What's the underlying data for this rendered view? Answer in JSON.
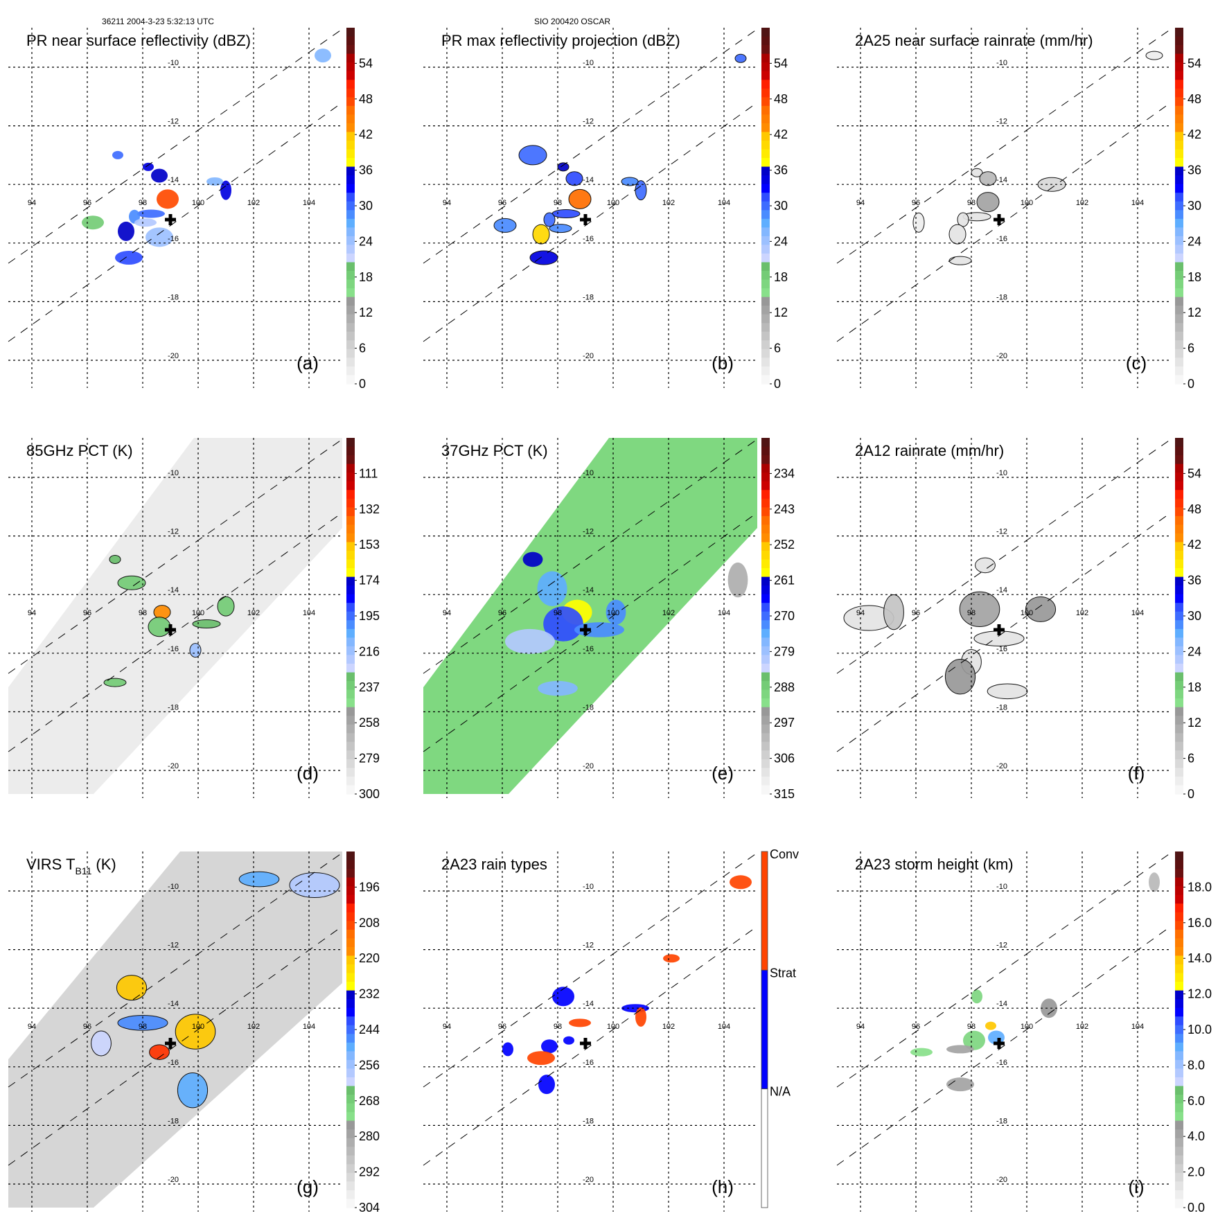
{
  "header": {
    "orbit_time": "36211 2004-3-23 5:32:13 UTC",
    "storm": "SIO 200420 OSCAR"
  },
  "colors": {
    "ramp": [
      "#f7f7f7",
      "#eeeeee",
      "#e4e4e4",
      "#d9d9d9",
      "#cfcfcf",
      "#c4c4c4",
      "#b9b9b9",
      "#aeaeae",
      "#a3a3a3",
      "#989898",
      "#88e08a",
      "#7ed680",
      "#74cc76",
      "#6abf6c",
      "#ccd5ff",
      "#b3c9ff",
      "#9cc0ff",
      "#83b7ff",
      "#5eaeff",
      "#4a8cff",
      "#3e6cff",
      "#2f4dff",
      "#0000ff",
      "#0000e0",
      "#0000c8",
      "#ffff00",
      "#ffeb00",
      "#ffd900",
      "#ffc800",
      "#ff8c00",
      "#ff7e00",
      "#ff6e00",
      "#ff4a00",
      "#ff3300",
      "#ff2000",
      "#cc0000",
      "#bb0000",
      "#aa0000",
      "#6a1010",
      "#5c1010",
      "#501414"
    ],
    "raintype_conv": "#ff4400",
    "raintype_strat": "#0000ff",
    "raintype_na": "#ffffff"
  },
  "chart_data": [
    {
      "id": "a",
      "type": "heatmap",
      "title": "PR near surface reflectivity (dBZ)",
      "panel_label": "(a)",
      "colorbar_ticks": [
        "54",
        "48",
        "42",
        "36",
        "30",
        "24",
        "18",
        "12",
        "6",
        "0"
      ],
      "colorbar_range": [
        0,
        60
      ],
      "colorbar_unit": "dBZ",
      "lon_ticks": [
        "94",
        "96",
        "98",
        "100",
        "102",
        "104"
      ],
      "lat_ticks": [
        "-10",
        "-12",
        "-14",
        "-16",
        "-18",
        "-20"
      ],
      "swath": "PR narrow swath",
      "storm_center": {
        "lon": 99.0,
        "lat": -15.2
      },
      "features": [
        {
          "lon": 98.2,
          "lat": -13.4,
          "value": 34
        },
        {
          "lon": 98.6,
          "lat": -13.7,
          "value": 36
        },
        {
          "lon": 98.9,
          "lat": -14.5,
          "value": 48
        },
        {
          "lon": 98.3,
          "lat": -15.0,
          "value": 30
        },
        {
          "lon": 97.7,
          "lat": -15.1,
          "value": 28
        },
        {
          "lon": 97.4,
          "lat": -15.6,
          "value": 36
        },
        {
          "lon": 98.1,
          "lat": -15.3,
          "value": 22
        },
        {
          "lon": 97.5,
          "lat": -16.5,
          "value": 32
        },
        {
          "lon": 101.0,
          "lat": -14.2,
          "value": 34
        },
        {
          "lon": 100.6,
          "lat": -13.9,
          "value": 26
        },
        {
          "lon": 96.2,
          "lat": -15.3,
          "value": 18
        },
        {
          "lon": 98.6,
          "lat": -15.8,
          "value": 24
        },
        {
          "lon": 97.1,
          "lat": -13.0,
          "value": 30
        },
        {
          "lon": 104.5,
          "lat": -9.6,
          "value": 26
        }
      ]
    },
    {
      "id": "b",
      "type": "heatmap",
      "title": "PR max reflectivity projection (dBZ)",
      "panel_label": "(b)",
      "colorbar_ticks": [
        "54",
        "48",
        "42",
        "36",
        "30",
        "24",
        "18",
        "12",
        "6",
        "0"
      ],
      "colorbar_range": [
        0,
        60
      ],
      "colorbar_unit": "dBZ",
      "lon_ticks": [
        "94",
        "96",
        "98",
        "100",
        "102",
        "104"
      ],
      "lat_ticks": [
        "-10",
        "-12",
        "-14",
        "-16",
        "-18",
        "-20"
      ],
      "storm_center": {
        "lon": 99.0,
        "lat": -15.2
      },
      "features": [
        {
          "lon": 98.2,
          "lat": -13.4,
          "value": 36
        },
        {
          "lon": 98.6,
          "lat": -13.8,
          "value": 32
        },
        {
          "lon": 98.8,
          "lat": -14.5,
          "value": 46
        },
        {
          "lon": 98.3,
          "lat": -15.0,
          "value": 32
        },
        {
          "lon": 97.7,
          "lat": -15.2,
          "value": 30
        },
        {
          "lon": 97.4,
          "lat": -15.7,
          "value": 40
        },
        {
          "lon": 98.1,
          "lat": -15.5,
          "value": 28
        },
        {
          "lon": 97.5,
          "lat": -16.5,
          "value": 34
        },
        {
          "lon": 101.0,
          "lat": -14.2,
          "value": 30
        },
        {
          "lon": 100.6,
          "lat": -13.9,
          "value": 28
        },
        {
          "lon": 96.1,
          "lat": -15.4,
          "value": 28
        },
        {
          "lon": 97.1,
          "lat": -13.0,
          "value": 30
        },
        {
          "lon": 104.6,
          "lat": -9.7,
          "value": 30
        }
      ]
    },
    {
      "id": "c",
      "type": "heatmap",
      "title": "2A25 near surface rainrate (mm/hr)",
      "panel_label": "(c)",
      "colorbar_ticks": [
        "54",
        "48",
        "42",
        "36",
        "30",
        "24",
        "18",
        "12",
        "6",
        "0"
      ],
      "colorbar_range": [
        0,
        60
      ],
      "colorbar_unit": "mm/hr",
      "lon_ticks": [
        "94",
        "96",
        "98",
        "100",
        "102",
        "104"
      ],
      "lat_ticks": [
        "-10",
        "-12",
        "-14",
        "-16",
        "-18",
        "-20"
      ],
      "storm_center": {
        "lon": 99.0,
        "lat": -15.2
      },
      "features": [
        {
          "lon": 98.2,
          "lat": -13.6,
          "value": 4
        },
        {
          "lon": 98.6,
          "lat": -13.8,
          "value": 10
        },
        {
          "lon": 98.6,
          "lat": -14.6,
          "value": 12
        },
        {
          "lon": 98.2,
          "lat": -15.1,
          "value": 4
        },
        {
          "lon": 97.7,
          "lat": -15.2,
          "value": 3
        },
        {
          "lon": 97.5,
          "lat": -15.7,
          "value": 3
        },
        {
          "lon": 97.6,
          "lat": -16.6,
          "value": 3
        },
        {
          "lon": 100.9,
          "lat": -14.0,
          "value": 5
        },
        {
          "lon": 96.1,
          "lat": -15.3,
          "value": 2
        },
        {
          "lon": 104.6,
          "lat": -9.6,
          "value": 2
        }
      ]
    },
    {
      "id": "d",
      "type": "heatmap",
      "title": "85GHz PCT (K)",
      "panel_label": "(d)",
      "colorbar_ticks": [
        "111",
        "132",
        "153",
        "174",
        "195",
        "216",
        "237",
        "258",
        "279",
        "300"
      ],
      "colorbar_range": [
        300,
        90
      ],
      "colorbar_unit": "K",
      "lon_ticks": [
        "94",
        "96",
        "98",
        "100",
        "102",
        "104"
      ],
      "lat_ticks": [
        "-10",
        "-12",
        "-14",
        "-16",
        "-18",
        "-20"
      ],
      "storm_center": {
        "lon": 99.0,
        "lat": -15.2
      },
      "background": "gray 270-300 K",
      "features": [
        {
          "lon": 97.0,
          "lat": -12.8,
          "value": 230
        },
        {
          "lon": 98.7,
          "lat": -14.6,
          "value": 150
        },
        {
          "lon": 98.6,
          "lat": -15.1,
          "value": 235
        },
        {
          "lon": 100.3,
          "lat": -15.0,
          "value": 230
        },
        {
          "lon": 99.9,
          "lat": -15.9,
          "value": 215
        },
        {
          "lon": 101.0,
          "lat": -14.4,
          "value": 236
        },
        {
          "lon": 97.0,
          "lat": -17.0,
          "value": 236
        },
        {
          "lon": 97.6,
          "lat": -13.6,
          "value": 236
        }
      ]
    },
    {
      "id": "e",
      "type": "heatmap",
      "title": "37GHz PCT (K)",
      "panel_label": "(e)",
      "colorbar_ticks": [
        "234",
        "243",
        "252",
        "261",
        "270",
        "279",
        "288",
        "297",
        "306",
        "315"
      ],
      "colorbar_range": [
        315,
        225
      ],
      "colorbar_unit": "K",
      "lon_ticks": [
        "94",
        "96",
        "98",
        "100",
        "102",
        "104"
      ],
      "lat_ticks": [
        "-10",
        "-12",
        "-14",
        "-16",
        "-18",
        "-20"
      ],
      "storm_center": {
        "lon": 99.0,
        "lat": -15.2
      },
      "background": "green 284-292 K",
      "features": [
        {
          "lon": 97.1,
          "lat": -12.8,
          "value": 262
        },
        {
          "lon": 98.7,
          "lat": -14.6,
          "value": 258
        },
        {
          "lon": 98.2,
          "lat": -15.0,
          "value": 268
        },
        {
          "lon": 99.5,
          "lat": -15.2,
          "value": 272
        },
        {
          "lon": 100.1,
          "lat": -14.6,
          "value": 272
        },
        {
          "lon": 97.8,
          "lat": -13.8,
          "value": 274
        },
        {
          "lon": 98.0,
          "lat": -17.2,
          "value": 276
        },
        {
          "lon": 97.0,
          "lat": -15.6,
          "value": 280
        },
        {
          "lon": 104.5,
          "lat": -13.5,
          "value": 298
        }
      ]
    },
    {
      "id": "f",
      "type": "heatmap",
      "title": "2A12 rainrate (mm/hr)",
      "panel_label": "(f)",
      "colorbar_ticks": [
        "54",
        "48",
        "42",
        "36",
        "30",
        "24",
        "18",
        "12",
        "6",
        "0"
      ],
      "colorbar_range": [
        0,
        60
      ],
      "colorbar_unit": "mm/hr",
      "lon_ticks": [
        "94",
        "96",
        "98",
        "100",
        "102",
        "104"
      ],
      "lat_ticks": [
        "-10",
        "-12",
        "-14",
        "-16",
        "-18",
        "-20"
      ],
      "storm_center": {
        "lon": 99.0,
        "lat": -15.2
      },
      "features": [
        {
          "lon": 98.5,
          "lat": -13.0,
          "value": 4
        },
        {
          "lon": 100.5,
          "lat": -14.5,
          "value": 14
        },
        {
          "lon": 98.3,
          "lat": -14.5,
          "value": 12
        },
        {
          "lon": 99.0,
          "lat": -15.5,
          "value": 4
        },
        {
          "lon": 98.0,
          "lat": -16.3,
          "value": 4
        },
        {
          "lon": 97.6,
          "lat": -16.8,
          "value": 14
        },
        {
          "lon": 99.3,
          "lat": -17.3,
          "value": 4
        },
        {
          "lon": 94.3,
          "lat": -14.8,
          "value": 4
        },
        {
          "lon": 95.2,
          "lat": -14.6,
          "value": 8
        }
      ]
    },
    {
      "id": "g",
      "type": "heatmap",
      "title_main": "VIRS T",
      "title_sub": "B11",
      "title_unit": "(K)",
      "panel_label": "(g)",
      "colorbar_ticks": [
        "196",
        "208",
        "220",
        "232",
        "244",
        "256",
        "268",
        "280",
        "292",
        "304"
      ],
      "colorbar_range": [
        304,
        184
      ],
      "colorbar_unit": "K",
      "lon_ticks": [
        "94",
        "96",
        "98",
        "100",
        "102",
        "104"
      ],
      "lat_ticks": [
        "-10",
        "-12",
        "-14",
        "-16",
        "-18",
        "-20"
      ],
      "storm_center": {
        "lon": 99.0,
        "lat": -15.2
      },
      "features": [
        {
          "lon": 98.6,
          "lat": -15.5,
          "value": 205
        },
        {
          "lon": 97.6,
          "lat": -13.3,
          "value": 222
        },
        {
          "lon": 99.9,
          "lat": -14.8,
          "value": 222
        },
        {
          "lon": 98.0,
          "lat": -14.5,
          "value": 248
        },
        {
          "lon": 96.5,
          "lat": -15.2,
          "value": 262
        },
        {
          "lon": 99.8,
          "lat": -16.8,
          "value": 250
        },
        {
          "lon": 102.2,
          "lat": -9.6,
          "value": 250
        },
        {
          "lon": 104.2,
          "lat": -9.8,
          "value": 258
        }
      ]
    },
    {
      "id": "h",
      "type": "heatmap",
      "title": "2A23 rain types",
      "panel_label": "(h)",
      "colorbar_ticks": [
        "Conv",
        "Strat",
        "N/A"
      ],
      "colorbar_categories": [
        "Conv",
        "Strat",
        "N/A"
      ],
      "lon_ticks": [
        "94",
        "96",
        "98",
        "100",
        "102",
        "104"
      ],
      "lat_ticks": [
        "-10",
        "-12",
        "-14",
        "-16",
        "-18",
        "-20"
      ],
      "storm_center": {
        "lon": 99.0,
        "lat": -15.2
      },
      "features": [
        {
          "lon": 98.4,
          "lat": -15.1,
          "category": "Strat"
        },
        {
          "lon": 97.7,
          "lat": -15.3,
          "category": "Strat"
        },
        {
          "lon": 98.2,
          "lat": -13.6,
          "category": "Strat"
        },
        {
          "lon": 100.8,
          "lat": -14.0,
          "category": "Strat"
        },
        {
          "lon": 96.2,
          "lat": -15.4,
          "category": "Strat"
        },
        {
          "lon": 97.6,
          "lat": -16.6,
          "category": "Strat"
        },
        {
          "lon": 98.8,
          "lat": -14.5,
          "category": "Conv"
        },
        {
          "lon": 97.4,
          "lat": -15.7,
          "category": "Conv"
        },
        {
          "lon": 101.0,
          "lat": -14.3,
          "category": "Conv"
        },
        {
          "lon": 102.1,
          "lat": -12.3,
          "category": "Conv"
        },
        {
          "lon": 104.6,
          "lat": -9.7,
          "category": "Conv"
        }
      ]
    },
    {
      "id": "i",
      "type": "heatmap",
      "title": "2A23 storm height (km)",
      "panel_label": "(i)",
      "colorbar_ticks": [
        "18.0",
        "16.0",
        "14.0",
        "12.0",
        "10.0",
        "8.0",
        "6.0",
        "4.0",
        "2.0",
        "0.0"
      ],
      "colorbar_range": [
        0,
        20
      ],
      "colorbar_unit": "km",
      "lon_ticks": [
        "94",
        "96",
        "98",
        "100",
        "102",
        "104"
      ],
      "lat_ticks": [
        "-10",
        "-12",
        "-14",
        "-16",
        "-18",
        "-20"
      ],
      "storm_center": {
        "lon": 99.0,
        "lat": -15.2
      },
      "features": [
        {
          "lon": 98.7,
          "lat": -14.6,
          "value": 14
        },
        {
          "lon": 98.9,
          "lat": -15.0,
          "value": 9
        },
        {
          "lon": 98.1,
          "lat": -15.1,
          "value": 5.5
        },
        {
          "lon": 97.6,
          "lat": -15.4,
          "value": 4
        },
        {
          "lon": 98.2,
          "lat": -13.6,
          "value": 5.5
        },
        {
          "lon": 100.8,
          "lat": -14.0,
          "value": 4.5
        },
        {
          "lon": 96.2,
          "lat": -15.5,
          "value": 5
        },
        {
          "lon": 97.6,
          "lat": -16.6,
          "value": 4
        },
        {
          "lon": 104.6,
          "lat": -9.7,
          "value": 3
        }
      ]
    }
  ]
}
